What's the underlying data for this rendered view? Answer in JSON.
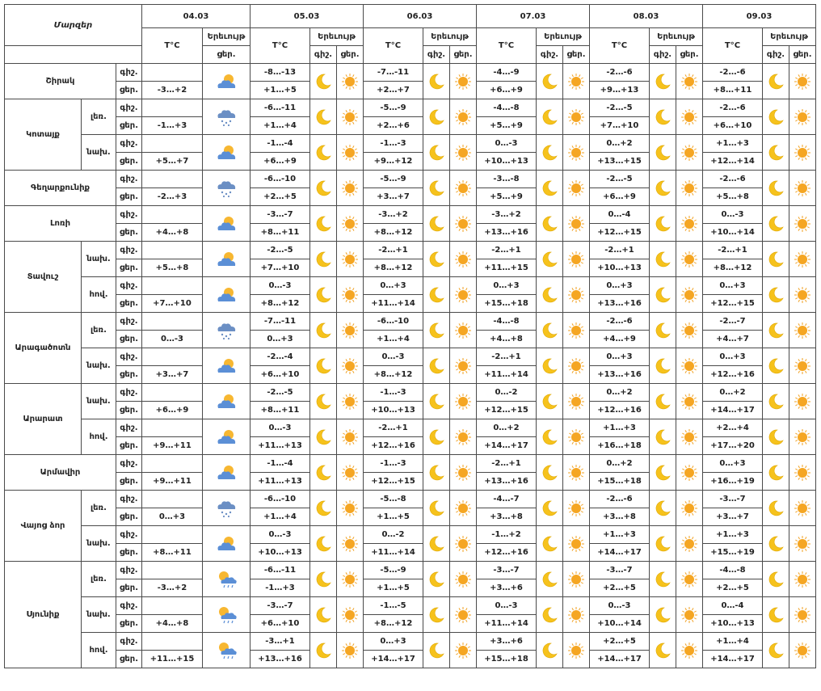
{
  "header": {
    "region_title": "Մարզեր",
    "dates": [
      "04.03",
      "05.03",
      "06.03",
      "07.03",
      "08.03",
      "09.03"
    ],
    "temp_label": "T°C",
    "weather_label": "Երեւույթ",
    "night_label": "գիշ.",
    "day_label": "ցեր."
  },
  "rows": [
    {
      "region": "Շիրակ",
      "sub": "",
      "d04": {
        "n": "",
        "d": "-3…+2",
        "icon": "cloud-sun"
      },
      "days": [
        {
          "n": "-8…-13",
          "d": "+1…+5"
        },
        {
          "n": "-7…-11",
          "d": "+2…+7"
        },
        {
          "n": "-4…-9",
          "d": "+6…+9"
        },
        {
          "n": "-2…-6",
          "d": "+9…+13"
        },
        {
          "n": "-2…-6",
          "d": "+8…+11"
        }
      ]
    },
    {
      "region": "Կոտայք",
      "sub": "լեռ.",
      "d04": {
        "n": "",
        "d": "-1…+3",
        "icon": "cloud-snow"
      },
      "days": [
        {
          "n": "-6…-11",
          "d": "+1…+4"
        },
        {
          "n": "-5…-9",
          "d": "+2…+6"
        },
        {
          "n": "-4…-8",
          "d": "+5…+9"
        },
        {
          "n": "-2…-5",
          "d": "+7…+10"
        },
        {
          "n": "-2…-6",
          "d": "+6…+10"
        }
      ]
    },
    {
      "region": "",
      "sub": "նախ.",
      "d04": {
        "n": "",
        "d": "+5…+7",
        "icon": "cloud-sun"
      },
      "days": [
        {
          "n": "-1…-4",
          "d": "+6…+9"
        },
        {
          "n": "-1…-3",
          "d": "+9…+12"
        },
        {
          "n": "0…-3",
          "d": "+10…+13"
        },
        {
          "n": "0…+2",
          "d": "+13…+15"
        },
        {
          "n": "+1…+3",
          "d": "+12…+14"
        }
      ]
    },
    {
      "region": "Գեղարքունիք",
      "sub": "",
      "d04": {
        "n": "",
        "d": "-2…+3",
        "icon": "cloud-snow"
      },
      "days": [
        {
          "n": "-6…-10",
          "d": "+2…+5"
        },
        {
          "n": "-5…-9",
          "d": "+3…+7"
        },
        {
          "n": "-3…-8",
          "d": "+5…+9"
        },
        {
          "n": "-2…-5",
          "d": "+6…+9"
        },
        {
          "n": "-2…-6",
          "d": "+5…+8"
        }
      ]
    },
    {
      "region": "Լոռի",
      "sub": "",
      "d04": {
        "n": "",
        "d": "+4…+8",
        "icon": "cloud-sun"
      },
      "days": [
        {
          "n": "-3…-7",
          "d": "+8…+11"
        },
        {
          "n": "-3…+2",
          "d": "+8…+12"
        },
        {
          "n": "-3…+2",
          "d": "+13…+16"
        },
        {
          "n": "0…-4",
          "d": "+12…+15"
        },
        {
          "n": "0…-3",
          "d": "+10…+14"
        }
      ]
    },
    {
      "region": "Տավուշ",
      "sub": "նախ.",
      "d04": {
        "n": "",
        "d": "+5…+8",
        "icon": "cloud-sun"
      },
      "days": [
        {
          "n": "-2…-5",
          "d": "+7…+10"
        },
        {
          "n": "-2…+1",
          "d": "+8…+12"
        },
        {
          "n": "-2…+1",
          "d": "+11…+15"
        },
        {
          "n": "-2…+1",
          "d": "+10…+13"
        },
        {
          "n": "-2…+1",
          "d": "+8…+12"
        }
      ]
    },
    {
      "region": "",
      "sub": "հով.",
      "d04": {
        "n": "",
        "d": "+7…+10",
        "icon": "cloud-sun"
      },
      "days": [
        {
          "n": "0…-3",
          "d": "+8…+12"
        },
        {
          "n": "0…+3",
          "d": "+11…+14"
        },
        {
          "n": "0…+3",
          "d": "+15…+18"
        },
        {
          "n": "0…+3",
          "d": "+13…+16"
        },
        {
          "n": "0…+3",
          "d": "+12…+15"
        }
      ]
    },
    {
      "region": "Արագածոտն",
      "sub": "լեռ.",
      "d04": {
        "n": "",
        "d": "0…-3",
        "icon": "cloud-snow"
      },
      "days": [
        {
          "n": "-7…-11",
          "d": "0…+3"
        },
        {
          "n": "-6…-10",
          "d": "+1…+4"
        },
        {
          "n": "-4…-8",
          "d": "+4…+8"
        },
        {
          "n": "-2…-6",
          "d": "+4…+9"
        },
        {
          "n": "-2…-7",
          "d": "+4…+7"
        }
      ]
    },
    {
      "region": "",
      "sub": "նախ.",
      "d04": {
        "n": "",
        "d": "+3…+7",
        "icon": "cloud-sun"
      },
      "days": [
        {
          "n": "-2…-4",
          "d": "+6…+10"
        },
        {
          "n": "0…-3",
          "d": "+8…+12"
        },
        {
          "n": "-2…+1",
          "d": "+11…+14"
        },
        {
          "n": "0…+3",
          "d": "+13…+16"
        },
        {
          "n": "0…+3",
          "d": "+12…+16"
        }
      ]
    },
    {
      "region": "Արարատ",
      "sub": "նախ.",
      "d04": {
        "n": "",
        "d": "+6…+9",
        "icon": "cloud-sun"
      },
      "days": [
        {
          "n": "-2…-5",
          "d": "+8…+11"
        },
        {
          "n": "-1…-3",
          "d": "+10…+13"
        },
        {
          "n": "0…-2",
          "d": "+12…+15"
        },
        {
          "n": "0…+2",
          "d": "+12…+16"
        },
        {
          "n": "0…+2",
          "d": "+14…+17"
        }
      ]
    },
    {
      "region": "",
      "sub": "հով.",
      "d04": {
        "n": "",
        "d": "+9…+11",
        "icon": "cloud-sun"
      },
      "days": [
        {
          "n": "0…-3",
          "d": "+11…+13"
        },
        {
          "n": "-2…+1",
          "d": "+12…+16"
        },
        {
          "n": "0…+2",
          "d": "+14…+17"
        },
        {
          "n": "+1…+3",
          "d": "+16…+18"
        },
        {
          "n": "+2…+4",
          "d": "+17…+20"
        }
      ]
    },
    {
      "region": "Արմավիր",
      "sub": "",
      "d04": {
        "n": "",
        "d": "+9…+11",
        "icon": "cloud-sun"
      },
      "days": [
        {
          "n": "-1…-4",
          "d": "+11…+13"
        },
        {
          "n": "-1…-3",
          "d": "+12…+15"
        },
        {
          "n": "-2…+1",
          "d": "+13…+16"
        },
        {
          "n": "0…+2",
          "d": "+15…+18"
        },
        {
          "n": "0…+3",
          "d": "+16…+19"
        }
      ]
    },
    {
      "region": "Վայոց ձոր",
      "sub": "լեռ.",
      "d04": {
        "n": "",
        "d": "0…+3",
        "icon": "cloud-snow"
      },
      "days": [
        {
          "n": "-6…-10",
          "d": "+1…+4"
        },
        {
          "n": "-5…-8",
          "d": "+1…+5"
        },
        {
          "n": "-4…-7",
          "d": "+3…+8"
        },
        {
          "n": "-2…-6",
          "d": "+3…+8"
        },
        {
          "n": "-3…-7",
          "d": "+3…+7"
        }
      ]
    },
    {
      "region": "",
      "sub": "նախ.",
      "d04": {
        "n": "",
        "d": "+8…+11",
        "icon": "cloud-sun"
      },
      "days": [
        {
          "n": "0…-3",
          "d": "+10…+13"
        },
        {
          "n": "0…-2",
          "d": "+11…+14"
        },
        {
          "n": "-1…+2",
          "d": "+12…+16"
        },
        {
          "n": "+1…+3",
          "d": "+14…+17"
        },
        {
          "n": "+1…+3",
          "d": "+15…+19"
        }
      ]
    },
    {
      "region": "Սյունիք",
      "sub": "լեռ.",
      "d04": {
        "n": "",
        "d": "-3…+2",
        "icon": "sun-cloud-rain"
      },
      "days": [
        {
          "n": "-6…-11",
          "d": "-1…+3"
        },
        {
          "n": "-5…-9",
          "d": "+1…+5"
        },
        {
          "n": "-3…-7",
          "d": "+3…+6"
        },
        {
          "n": "-3…-7",
          "d": "+2…+5"
        },
        {
          "n": "-4…-8",
          "d": "+2…+5"
        }
      ]
    },
    {
      "region": "",
      "sub": "նախ.",
      "d04": {
        "n": "",
        "d": "+4…+8",
        "icon": "sun-cloud-rain"
      },
      "days": [
        {
          "n": "-3…-7",
          "d": "+6…+10"
        },
        {
          "n": "-1…-5",
          "d": "+8…+12"
        },
        {
          "n": "0…-3",
          "d": "+11…+14"
        },
        {
          "n": "0…-3",
          "d": "+10…+14"
        },
        {
          "n": "0…-4",
          "d": "+10…+13"
        }
      ]
    },
    {
      "region": "",
      "sub": "հով.",
      "d04": {
        "n": "",
        "d": "+11…+15",
        "icon": "sun-cloud-rain"
      },
      "days": [
        {
          "n": "-3…+1",
          "d": "+13…+16"
        },
        {
          "n": "0…+3",
          "d": "+14…+17"
        },
        {
          "n": "+3…+6",
          "d": "+15…+18"
        },
        {
          "n": "+2…+5",
          "d": "+14…+17"
        },
        {
          "n": "+1…+4",
          "d": "+14…+17"
        }
      ]
    }
  ],
  "groups": [
    {
      "region": "Շիրակ",
      "start": 0,
      "count": 1,
      "has_sub": false
    },
    {
      "region": "Կոտայք",
      "start": 1,
      "count": 2,
      "has_sub": true
    },
    {
      "region": "Գեղարքունիք",
      "start": 3,
      "count": 1,
      "has_sub": false
    },
    {
      "region": "Լոռի",
      "start": 4,
      "count": 1,
      "has_sub": false
    },
    {
      "region": "Տավուշ",
      "start": 5,
      "count": 2,
      "has_sub": true
    },
    {
      "region": "Արագածոտն",
      "start": 7,
      "count": 2,
      "has_sub": true
    },
    {
      "region": "Արարատ",
      "start": 9,
      "count": 2,
      "has_sub": true
    },
    {
      "region": "Արմավիր",
      "start": 11,
      "count": 1,
      "has_sub": false
    },
    {
      "region": "Վայոց ձոր",
      "start": 12,
      "count": 2,
      "has_sub": true
    },
    {
      "region": "Սյունիք",
      "start": 14,
      "count": 3,
      "has_sub": true
    }
  ],
  "icons": {
    "moon": "moon-icon",
    "sun": "sun-icon",
    "cloud-sun": "cloud-sun-icon",
    "cloud-snow": "cloud-snow-icon",
    "sun-cloud-rain": "sun-cloud-rain-icon"
  },
  "colors": {
    "border": "#4a4a4a",
    "moon": "#f6c21c",
    "sun": "#f5a623",
    "cloud": "#5b8fd6"
  }
}
